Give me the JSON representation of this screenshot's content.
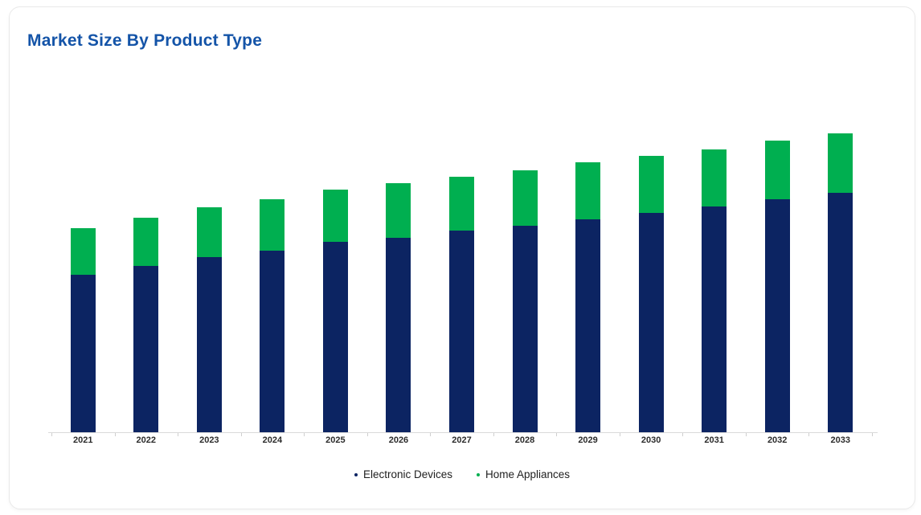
{
  "card": {
    "title": "Market Size By Product Type"
  },
  "chart_data": {
    "type": "bar",
    "stacked": true,
    "title": "Market Size By Product Type",
    "xlabel": "",
    "ylabel": "",
    "y_axis_visible": false,
    "grid": false,
    "legend_position": "bottom",
    "categories": [
      "2021",
      "2022",
      "2023",
      "2024",
      "2025",
      "2026",
      "2027",
      "2028",
      "2029",
      "2030",
      "2031",
      "2032",
      "2033"
    ],
    "series": [
      {
        "name": "Electronic Devices",
        "color": "#0c2462",
        "values": [
          52.5,
          55.5,
          58.4,
          60.8,
          63.7,
          65.1,
          67.3,
          68.9,
          71.1,
          73.2,
          75.4,
          77.8,
          80.1
        ]
      },
      {
        "name": "Home Appliances",
        "color": "#00af50",
        "values": [
          15.6,
          16.1,
          16.8,
          17.1,
          17.5,
          18.1,
          18.1,
          18.6,
          19.1,
          19.1,
          19.2,
          19.6,
          19.9
        ]
      }
    ],
    "ylim": [
      0,
      107
    ]
  },
  "legend": {
    "items": [
      {
        "label": "Electronic Devices",
        "color": "#0c2462"
      },
      {
        "label": "Home Appliances",
        "color": "#00af50"
      }
    ]
  },
  "colors": {
    "title": "#1454a8",
    "axis_line": "#d9d9d9",
    "x_label": "#2b2b2b",
    "card_border": "#e9e9e9"
  }
}
